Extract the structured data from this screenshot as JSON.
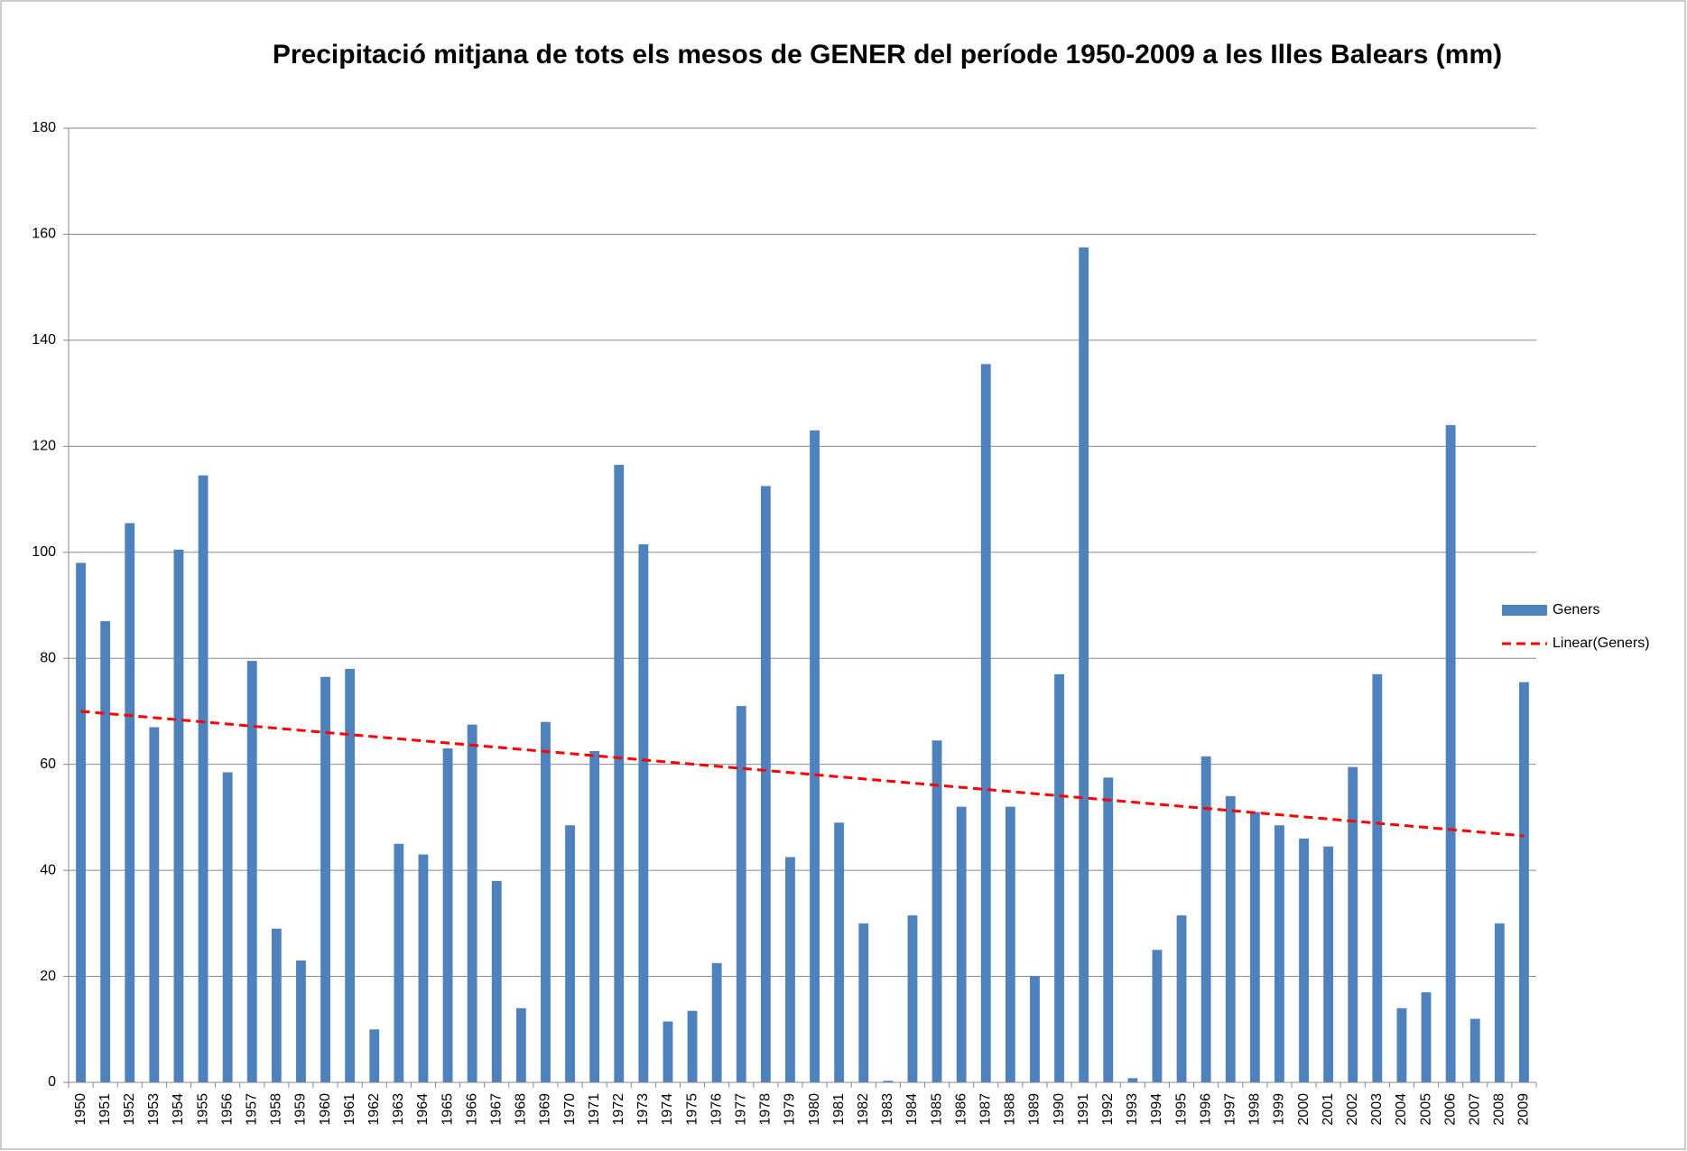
{
  "chart_data": {
    "type": "bar",
    "title": "Precipitació mitjana de tots els mesos de GENER del període 1950-2009 a les Illes Balears (mm)",
    "categories": [
      "1950",
      "1951",
      "1952",
      "1953",
      "1954",
      "1955",
      "1956",
      "1957",
      "1958",
      "1959",
      "1960",
      "1961",
      "1962",
      "1963",
      "1964",
      "1965",
      "1966",
      "1967",
      "1968",
      "1969",
      "1970",
      "1971",
      "1972",
      "1973",
      "1974",
      "1975",
      "1976",
      "1977",
      "1978",
      "1979",
      "1980",
      "1981",
      "1982",
      "1983",
      "1984",
      "1985",
      "1986",
      "1987",
      "1988",
      "1989",
      "1990",
      "1991",
      "1992",
      "1993",
      "1994",
      "1995",
      "1996",
      "1997",
      "1998",
      "1999",
      "2000",
      "2001",
      "2002",
      "2003",
      "2004",
      "2005",
      "2006",
      "2007",
      "2008",
      "2009"
    ],
    "series": [
      {
        "name": "Geners",
        "color": "#4f81bd",
        "values": [
          98,
          87,
          105.5,
          67,
          100.5,
          114.5,
          58.5,
          79.5,
          29,
          23,
          76.5,
          78,
          10,
          45,
          43,
          63,
          67.5,
          38,
          14,
          68,
          48.5,
          62.5,
          116.5,
          101.5,
          11.5,
          13.5,
          22.5,
          71,
          112.5,
          42.5,
          123,
          49,
          30,
          0.3,
          31.5,
          64.5,
          52,
          135.5,
          52,
          20,
          77,
          157.5,
          57.5,
          0.8,
          25,
          31.5,
          61.5,
          54,
          51,
          48.5,
          46,
          44.5,
          59.5,
          77,
          14,
          17,
          124,
          12,
          30,
          75.5
        ]
      }
    ],
    "trendline": {
      "name": "Linear(Geners)",
      "color": "#ff0000",
      "values": [
        70,
        46.5
      ]
    },
    "ylim": [
      0,
      180
    ],
    "yticks": [
      0,
      20,
      40,
      60,
      80,
      100,
      120,
      140,
      160,
      180
    ],
    "grid": true,
    "legend": "right"
  }
}
